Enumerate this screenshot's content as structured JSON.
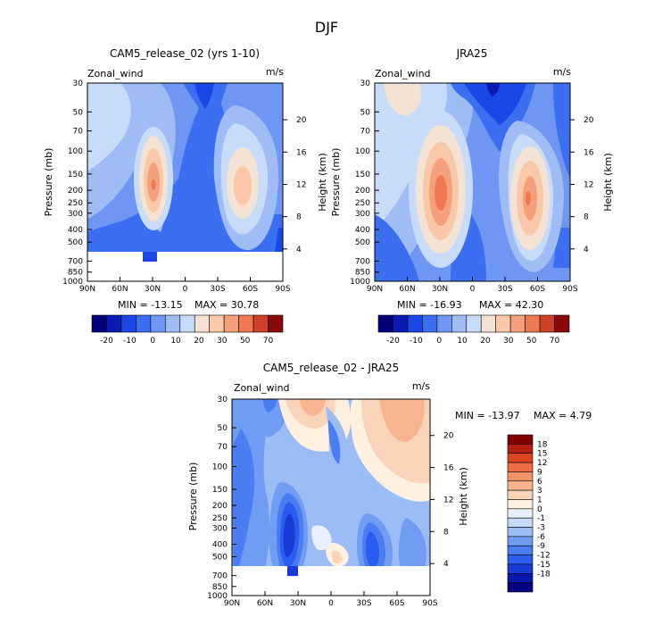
{
  "figure": {
    "title": "DJF"
  },
  "chart_data": [
    {
      "type": "contour",
      "title": "CAM5_release_02 (yrs 1-10)",
      "field": "Zonal_wind",
      "units": "m/s",
      "ylabel": "Pressure (mb)",
      "ylabel_right": "Height (km)",
      "x_ticks": [
        "90N",
        "60N",
        "30N",
        "0",
        "30S",
        "60S",
        "90S"
      ],
      "p_ticks": [
        30,
        50,
        70,
        100,
        150,
        200,
        250,
        300,
        400,
        500,
        700,
        850,
        1000
      ],
      "z_ticks": [
        4,
        8,
        12,
        16,
        20
      ],
      "missing_below_mb": 600,
      "min_label": "MIN = -13.15",
      "max_label": "MAX =  30.78",
      "levels": [
        -20,
        -10,
        0,
        10,
        20,
        30,
        50,
        70
      ],
      "jets": [
        {
          "lat": 30,
          "p": 200,
          "max": 30.78
        },
        {
          "lat": -45,
          "p": 200,
          "max": 15
        }
      ]
    },
    {
      "type": "contour",
      "title": "JRA25",
      "field": "Zonal_wind",
      "units": "m/s",
      "ylabel": "Pressure (mb)",
      "ylabel_right": "Height (km)",
      "x_ticks": [
        "90N",
        "60N",
        "30N",
        "0",
        "30S",
        "60S",
        "90S"
      ],
      "p_ticks": [
        30,
        50,
        70,
        100,
        150,
        200,
        250,
        300,
        400,
        500,
        700,
        850,
        1000
      ],
      "z_ticks": [
        4,
        8,
        12,
        16,
        20
      ],
      "min_label": "MIN = -16.93",
      "max_label": "MAX =  42.30",
      "levels": [
        -20,
        -10,
        0,
        10,
        20,
        30,
        50,
        70
      ],
      "jets": [
        {
          "lat": 30,
          "p": 200,
          "max": 42.3
        },
        {
          "lat": -45,
          "p": 250,
          "max": 30
        }
      ]
    },
    {
      "type": "contour",
      "title": "CAM5_release_02 - JRA25",
      "field": "Zonal_wind",
      "units": "m/s",
      "ylabel": "Pressure (mb)",
      "ylabel_right": "Height (km)",
      "x_ticks": [
        "90N",
        "60N",
        "30N",
        "0",
        "30S",
        "60S",
        "90S"
      ],
      "p_ticks": [
        30,
        50,
        70,
        100,
        150,
        200,
        250,
        300,
        400,
        500,
        700,
        850,
        1000
      ],
      "z_ticks": [
        4,
        8,
        12,
        16,
        20
      ],
      "missing_below_mb": 600,
      "min_label": "MIN = -13.97",
      "max_label": "MAX =   4.79",
      "levels": [
        -18,
        -15,
        -12,
        -9,
        -6,
        -3,
        -1,
        0,
        1,
        3,
        6,
        9,
        12,
        15,
        18
      ]
    }
  ],
  "colors": {
    "abs_scale": [
      "#00007a",
      "#0a1ab4",
      "#1a48e6",
      "#3b6ef0",
      "#6f96f2",
      "#9fbcf5",
      "#c8dcfa",
      "#f4e2d4",
      "#f8c8a8",
      "#f4a07a",
      "#ee7852",
      "#d04028",
      "#8a0a0a"
    ],
    "diff_scale": [
      "#000080",
      "#0a18b0",
      "#1a3ad8",
      "#2a5cf0",
      "#4a7cf2",
      "#709cf4",
      "#9cbcf6",
      "#c8dcfa",
      "#e8f0fc",
      "#fff0e0",
      "#fad4b8",
      "#f8b48e",
      "#f49268",
      "#ee6c44",
      "#dc4422",
      "#b41e10",
      "#800000"
    ]
  }
}
